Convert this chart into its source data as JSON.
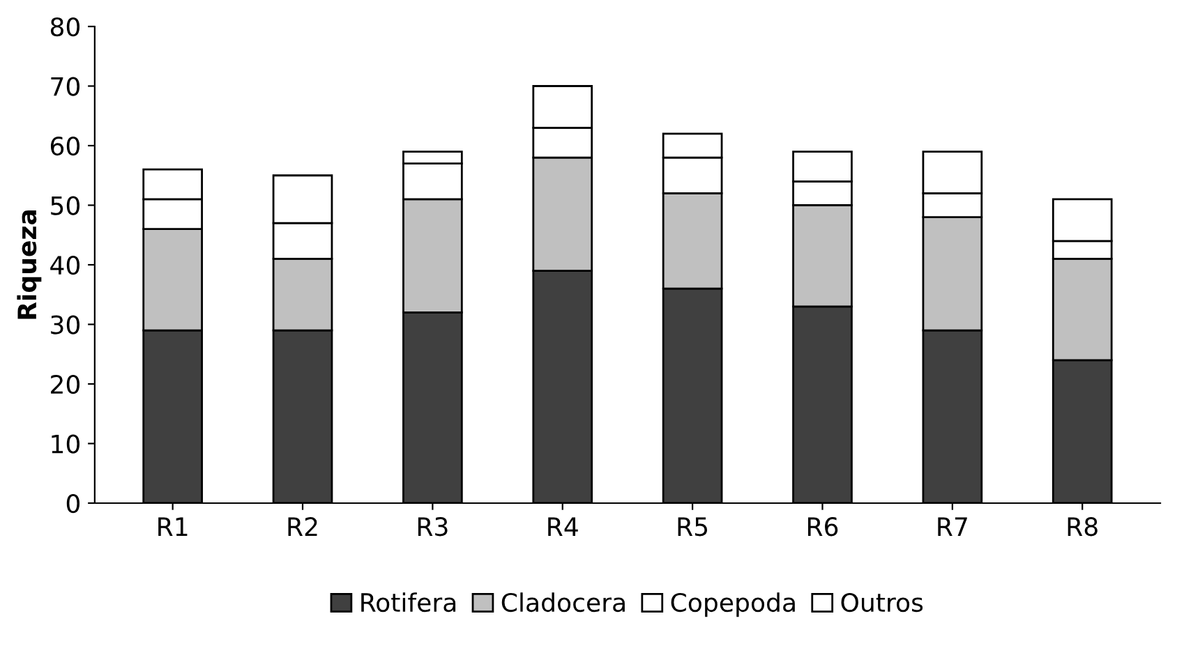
{
  "chart_data": {
    "type": "bar",
    "ylabel": "Riqueza",
    "stacked": true,
    "categories": [
      "R1",
      "R2",
      "R3",
      "R4",
      "R5",
      "R6",
      "R7",
      "R8"
    ],
    "series": [
      {
        "name": "Rotifera",
        "color": "#404040",
        "values": [
          29,
          29,
          32,
          39,
          36,
          33,
          29,
          24
        ]
      },
      {
        "name": "Cladocera",
        "color": "#c0c0c0",
        "values": [
          17,
          12,
          19,
          19,
          16,
          17,
          19,
          17
        ]
      },
      {
        "name": "Copepoda",
        "color": "#ffffff",
        "values": [
          5,
          6,
          6,
          5,
          6,
          4,
          4,
          3
        ]
      },
      {
        "name": "Outros",
        "color": "#ffffff",
        "values": [
          5,
          8,
          2,
          7,
          4,
          5,
          7,
          7
        ]
      }
    ],
    "ylim": [
      0,
      80
    ],
    "yticks": [
      0,
      10,
      20,
      30,
      40,
      50,
      60,
      70,
      80
    ],
    "grid": false,
    "legend": "bottom"
  }
}
